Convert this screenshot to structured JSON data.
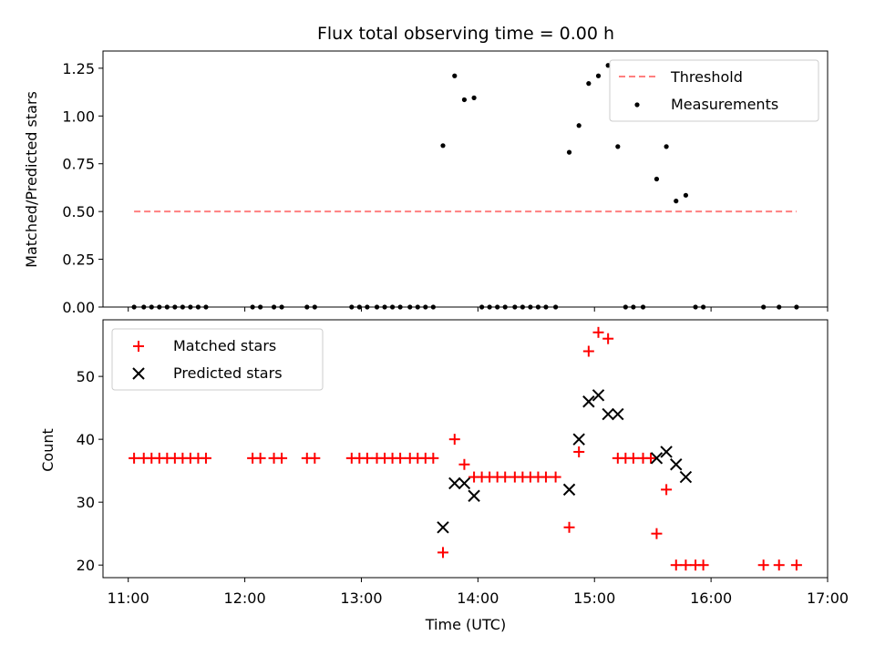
{
  "chart_data": [
    {
      "type": "scatter",
      "title": "Flux total observing time = 0.00 h",
      "ylabel": "Matched/Predicted stars",
      "xlim": [
        "10:47",
        "17:00"
      ],
      "ylim": [
        0,
        1.34
      ],
      "yticks": [
        "0.00",
        "0.25",
        "0.50",
        "0.75",
        "1.00",
        "1.25"
      ],
      "legend_position": "top-right",
      "threshold": {
        "name": "Threshold",
        "value": 0.5,
        "x_range": [
          "11:03",
          "16:44"
        ],
        "color": "#ff7f7f"
      },
      "series": [
        {
          "name": "Measurements",
          "color": "#000000",
          "points": [
            [
              "11:03",
              0
            ],
            [
              "11:08",
              0
            ],
            [
              "11:12",
              0
            ],
            [
              "11:16",
              0
            ],
            [
              "11:20",
              0
            ],
            [
              "11:24",
              0
            ],
            [
              "11:28",
              0
            ],
            [
              "11:32",
              0
            ],
            [
              "11:36",
              0
            ],
            [
              "11:40",
              0
            ],
            [
              "12:04",
              0
            ],
            [
              "12:08",
              0
            ],
            [
              "12:15",
              0
            ],
            [
              "12:19",
              0
            ],
            [
              "12:32",
              0
            ],
            [
              "12:36",
              0
            ],
            [
              "12:55",
              0
            ],
            [
              "12:59",
              0
            ],
            [
              "13:03",
              0
            ],
            [
              "13:08",
              0
            ],
            [
              "13:12",
              0
            ],
            [
              "13:16",
              0
            ],
            [
              "13:20",
              0
            ],
            [
              "13:25",
              0
            ],
            [
              "13:29",
              0
            ],
            [
              "13:33",
              0
            ],
            [
              "13:37",
              0
            ],
            [
              "13:42",
              0.845
            ],
            [
              "13:48",
              1.21
            ],
            [
              "13:53",
              1.085
            ],
            [
              "13:58",
              1.095
            ],
            [
              "14:02",
              0
            ],
            [
              "14:06",
              0
            ],
            [
              "14:10",
              0
            ],
            [
              "14:14",
              0
            ],
            [
              "14:19",
              0
            ],
            [
              "14:23",
              0
            ],
            [
              "14:27",
              0
            ],
            [
              "14:31",
              0
            ],
            [
              "14:35",
              0
            ],
            [
              "14:40",
              0
            ],
            [
              "14:47",
              0.81
            ],
            [
              "14:52",
              0.95
            ],
            [
              "14:57",
              1.17
            ],
            [
              "15:02",
              1.21
            ],
            [
              "15:07",
              1.265
            ],
            [
              "15:12",
              0.84
            ],
            [
              "15:16",
              0
            ],
            [
              "15:20",
              0
            ],
            [
              "15:25",
              0
            ],
            [
              "15:32",
              0.67
            ],
            [
              "15:37",
              0.84
            ],
            [
              "15:42",
              0.555
            ],
            [
              "15:47",
              0.585
            ],
            [
              "15:52",
              0
            ],
            [
              "15:56",
              0
            ],
            [
              "16:27",
              0
            ],
            [
              "16:35",
              0
            ],
            [
              "16:44",
              0
            ]
          ]
        }
      ]
    },
    {
      "type": "scatter",
      "xlabel": "Time (UTC)",
      "ylabel": "Count",
      "xlim": [
        "10:47",
        "17:00"
      ],
      "ylim": [
        18,
        59
      ],
      "yticks": [
        "20",
        "30",
        "40",
        "50"
      ],
      "xticks": [
        "11:00",
        "12:00",
        "13:00",
        "14:00",
        "15:00",
        "16:00",
        "17:00"
      ],
      "legend_position": "top-left",
      "series": [
        {
          "name": "Matched stars",
          "color": "#ff0000",
          "marker": "plus",
          "points": [
            [
              "11:03",
              37
            ],
            [
              "11:08",
              37
            ],
            [
              "11:12",
              37
            ],
            [
              "11:16",
              37
            ],
            [
              "11:20",
              37
            ],
            [
              "11:24",
              37
            ],
            [
              "11:28",
              37
            ],
            [
              "11:32",
              37
            ],
            [
              "11:36",
              37
            ],
            [
              "11:40",
              37
            ],
            [
              "12:04",
              37
            ],
            [
              "12:08",
              37
            ],
            [
              "12:15",
              37
            ],
            [
              "12:19",
              37
            ],
            [
              "12:32",
              37
            ],
            [
              "12:36",
              37
            ],
            [
              "12:55",
              37
            ],
            [
              "12:59",
              37
            ],
            [
              "13:03",
              37
            ],
            [
              "13:08",
              37
            ],
            [
              "13:12",
              37
            ],
            [
              "13:16",
              37
            ],
            [
              "13:20",
              37
            ],
            [
              "13:25",
              37
            ],
            [
              "13:29",
              37
            ],
            [
              "13:33",
              37
            ],
            [
              "13:37",
              37
            ],
            [
              "13:42",
              22
            ],
            [
              "13:48",
              40
            ],
            [
              "13:53",
              36
            ],
            [
              "13:58",
              34
            ],
            [
              "14:02",
              34
            ],
            [
              "14:06",
              34
            ],
            [
              "14:10",
              34
            ],
            [
              "14:14",
              34
            ],
            [
              "14:19",
              34
            ],
            [
              "14:23",
              34
            ],
            [
              "14:27",
              34
            ],
            [
              "14:31",
              34
            ],
            [
              "14:35",
              34
            ],
            [
              "14:40",
              34
            ],
            [
              "14:47",
              26
            ],
            [
              "14:52",
              38
            ],
            [
              "14:57",
              54
            ],
            [
              "15:02",
              57
            ],
            [
              "15:07",
              56
            ],
            [
              "15:12",
              37
            ],
            [
              "15:16",
              37
            ],
            [
              "15:20",
              37
            ],
            [
              "15:25",
              37
            ],
            [
              "15:29",
              37
            ],
            [
              "15:32",
              25
            ],
            [
              "15:37",
              32
            ],
            [
              "15:42",
              20
            ],
            [
              "15:47",
              20
            ],
            [
              "15:52",
              20
            ],
            [
              "15:56",
              20
            ],
            [
              "16:27",
              20
            ],
            [
              "16:35",
              20
            ],
            [
              "16:44",
              20
            ]
          ]
        },
        {
          "name": "Predicted stars",
          "color": "#000000",
          "marker": "x",
          "points": [
            [
              "13:42",
              26
            ],
            [
              "13:48",
              33
            ],
            [
              "13:53",
              33
            ],
            [
              "13:58",
              31
            ],
            [
              "14:47",
              32
            ],
            [
              "14:52",
              40
            ],
            [
              "14:57",
              46
            ],
            [
              "15:02",
              47
            ],
            [
              "15:07",
              44
            ],
            [
              "15:12",
              44
            ],
            [
              "15:32",
              37
            ],
            [
              "15:37",
              38
            ],
            [
              "15:42",
              36
            ],
            [
              "15:47",
              34
            ]
          ]
        }
      ]
    }
  ]
}
